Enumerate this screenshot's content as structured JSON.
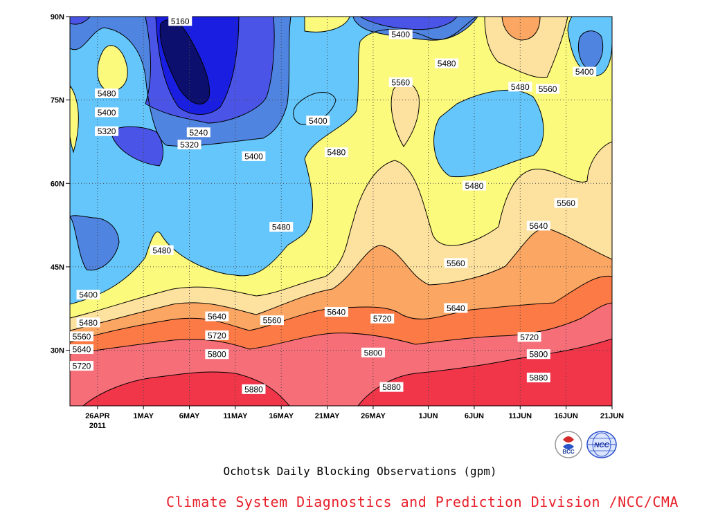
{
  "chart_data": {
    "type": "heatmap",
    "variant": "filled-contour (time-latitude Hovmoller)",
    "title": "Ochotsk Daily Blocking Observations (gpm)",
    "x_tick_labels": [
      "26APR",
      "1MAY",
      "6MAY",
      "11MAY",
      "16MAY",
      "21MAY",
      "26MAY",
      "1JUN",
      "6JUN",
      "11JUN",
      "16JUN",
      "21JUN"
    ],
    "x_year_label": "2011",
    "x_range": [
      "2011-04-23",
      "2011-06-21"
    ],
    "y_tick_labels": [
      "30N",
      "45N",
      "60N",
      "75N",
      "90N"
    ],
    "y_ticks": [
      30,
      45,
      60,
      75,
      90
    ],
    "y_range": [
      20,
      90
    ],
    "grid": "dotted",
    "contour_interval": 80,
    "fill_levels": [
      {
        "min": 5080,
        "max": 5160,
        "color": "#0c0f6e"
      },
      {
        "min": 5160,
        "max": 5240,
        "color": "#1a1ee0"
      },
      {
        "min": 5240,
        "max": 5320,
        "color": "#4a55e8"
      },
      {
        "min": 5320,
        "max": 5400,
        "color": "#4f84e0"
      },
      {
        "min": 5400,
        "max": 5480,
        "color": "#65c6fb"
      },
      {
        "min": 5480,
        "max": 5560,
        "color": "#fcfa7c"
      },
      {
        "min": 5560,
        "max": 5640,
        "color": "#fde19e"
      },
      {
        "min": 5640,
        "max": 5720,
        "color": "#fba763"
      },
      {
        "min": 5720,
        "max": 5800,
        "color": "#fc7a45"
      },
      {
        "min": 5800,
        "max": 5880,
        "color": "#f56e78"
      },
      {
        "min": 5880,
        "max": 5960,
        "color": "#f2364a"
      }
    ],
    "contour_labels": [
      {
        "value": "5160",
        "date": "2011-05-05",
        "lat": 89.2
      },
      {
        "value": "5400",
        "date": "2011-05-29",
        "lat": 86.8
      },
      {
        "value": "5480",
        "date": "2011-06-03",
        "lat": 81.6
      },
      {
        "value": "5400",
        "date": "2011-06-18",
        "lat": 80.1
      },
      {
        "value": "5480",
        "date": "2011-04-27",
        "lat": 76.2
      },
      {
        "value": "5560",
        "date": "2011-05-29",
        "lat": 78.2
      },
      {
        "value": "5480",
        "date": "2011-06-11",
        "lat": 77.4
      },
      {
        "value": "5560",
        "date": "2011-06-14",
        "lat": 77.0
      },
      {
        "value": "5400",
        "date": "2011-04-27",
        "lat": 72.8
      },
      {
        "value": "5400",
        "date": "2011-05-20",
        "lat": 71.3
      },
      {
        "value": "5320",
        "date": "2011-04-27",
        "lat": 69.4
      },
      {
        "value": "5240",
        "date": "2011-05-07",
        "lat": 69.2
      },
      {
        "value": "5320",
        "date": "2011-05-06",
        "lat": 67.0
      },
      {
        "value": "5480",
        "date": "2011-05-22",
        "lat": 65.6
      },
      {
        "value": "5400",
        "date": "2011-05-13",
        "lat": 64.9
      },
      {
        "value": "5480",
        "date": "2011-06-06",
        "lat": 59.6
      },
      {
        "value": "5560",
        "date": "2011-06-16",
        "lat": 56.5
      },
      {
        "value": "5480",
        "date": "2011-05-16",
        "lat": 52.2
      },
      {
        "value": "5640",
        "date": "2011-06-13",
        "lat": 52.4
      },
      {
        "value": "5480",
        "date": "2011-05-03",
        "lat": 48.0
      },
      {
        "value": "5560",
        "date": "2011-06-04",
        "lat": 45.7
      },
      {
        "value": "5400",
        "date": "2011-04-25",
        "lat": 40.0
      },
      {
        "value": "5640",
        "date": "2011-05-09",
        "lat": 36.1
      },
      {
        "value": "5640",
        "date": "2011-05-22",
        "lat": 36.9
      },
      {
        "value": "5640",
        "date": "2011-06-04",
        "lat": 37.6
      },
      {
        "value": "5560",
        "date": "2011-05-15",
        "lat": 35.4
      },
      {
        "value": "5720",
        "date": "2011-05-27",
        "lat": 35.7
      },
      {
        "value": "5480",
        "date": "2011-04-25",
        "lat": 35.0
      },
      {
        "value": "5720",
        "date": "2011-05-09",
        "lat": 32.7
      },
      {
        "value": "5720",
        "date": "2011-06-12",
        "lat": 32.4
      },
      {
        "value": "5560",
        "date": "2011-04-24",
        "lat": 32.5
      },
      {
        "value": "5640",
        "date": "2011-04-24",
        "lat": 30.2
      },
      {
        "value": "5800",
        "date": "2011-05-09",
        "lat": 29.3
      },
      {
        "value": "5800",
        "date": "2011-05-26",
        "lat": 29.6
      },
      {
        "value": "5800",
        "date": "2011-06-13",
        "lat": 29.3
      },
      {
        "value": "5720",
        "date": "2011-04-24",
        "lat": 27.2
      },
      {
        "value": "5880",
        "date": "2011-06-13",
        "lat": 25.1
      },
      {
        "value": "5880",
        "date": "2011-05-13",
        "lat": 23.0
      },
      {
        "value": "5880",
        "date": "2011-05-28",
        "lat": 23.4
      }
    ]
  },
  "caption": {
    "credit": "Climate System Diagnostics and Prediction Division /NCC/CMA"
  },
  "logos": [
    {
      "icon": "bcc-logo-icon",
      "text": "BCC"
    },
    {
      "icon": "ncc-logo-icon",
      "text": "NCC"
    }
  ]
}
